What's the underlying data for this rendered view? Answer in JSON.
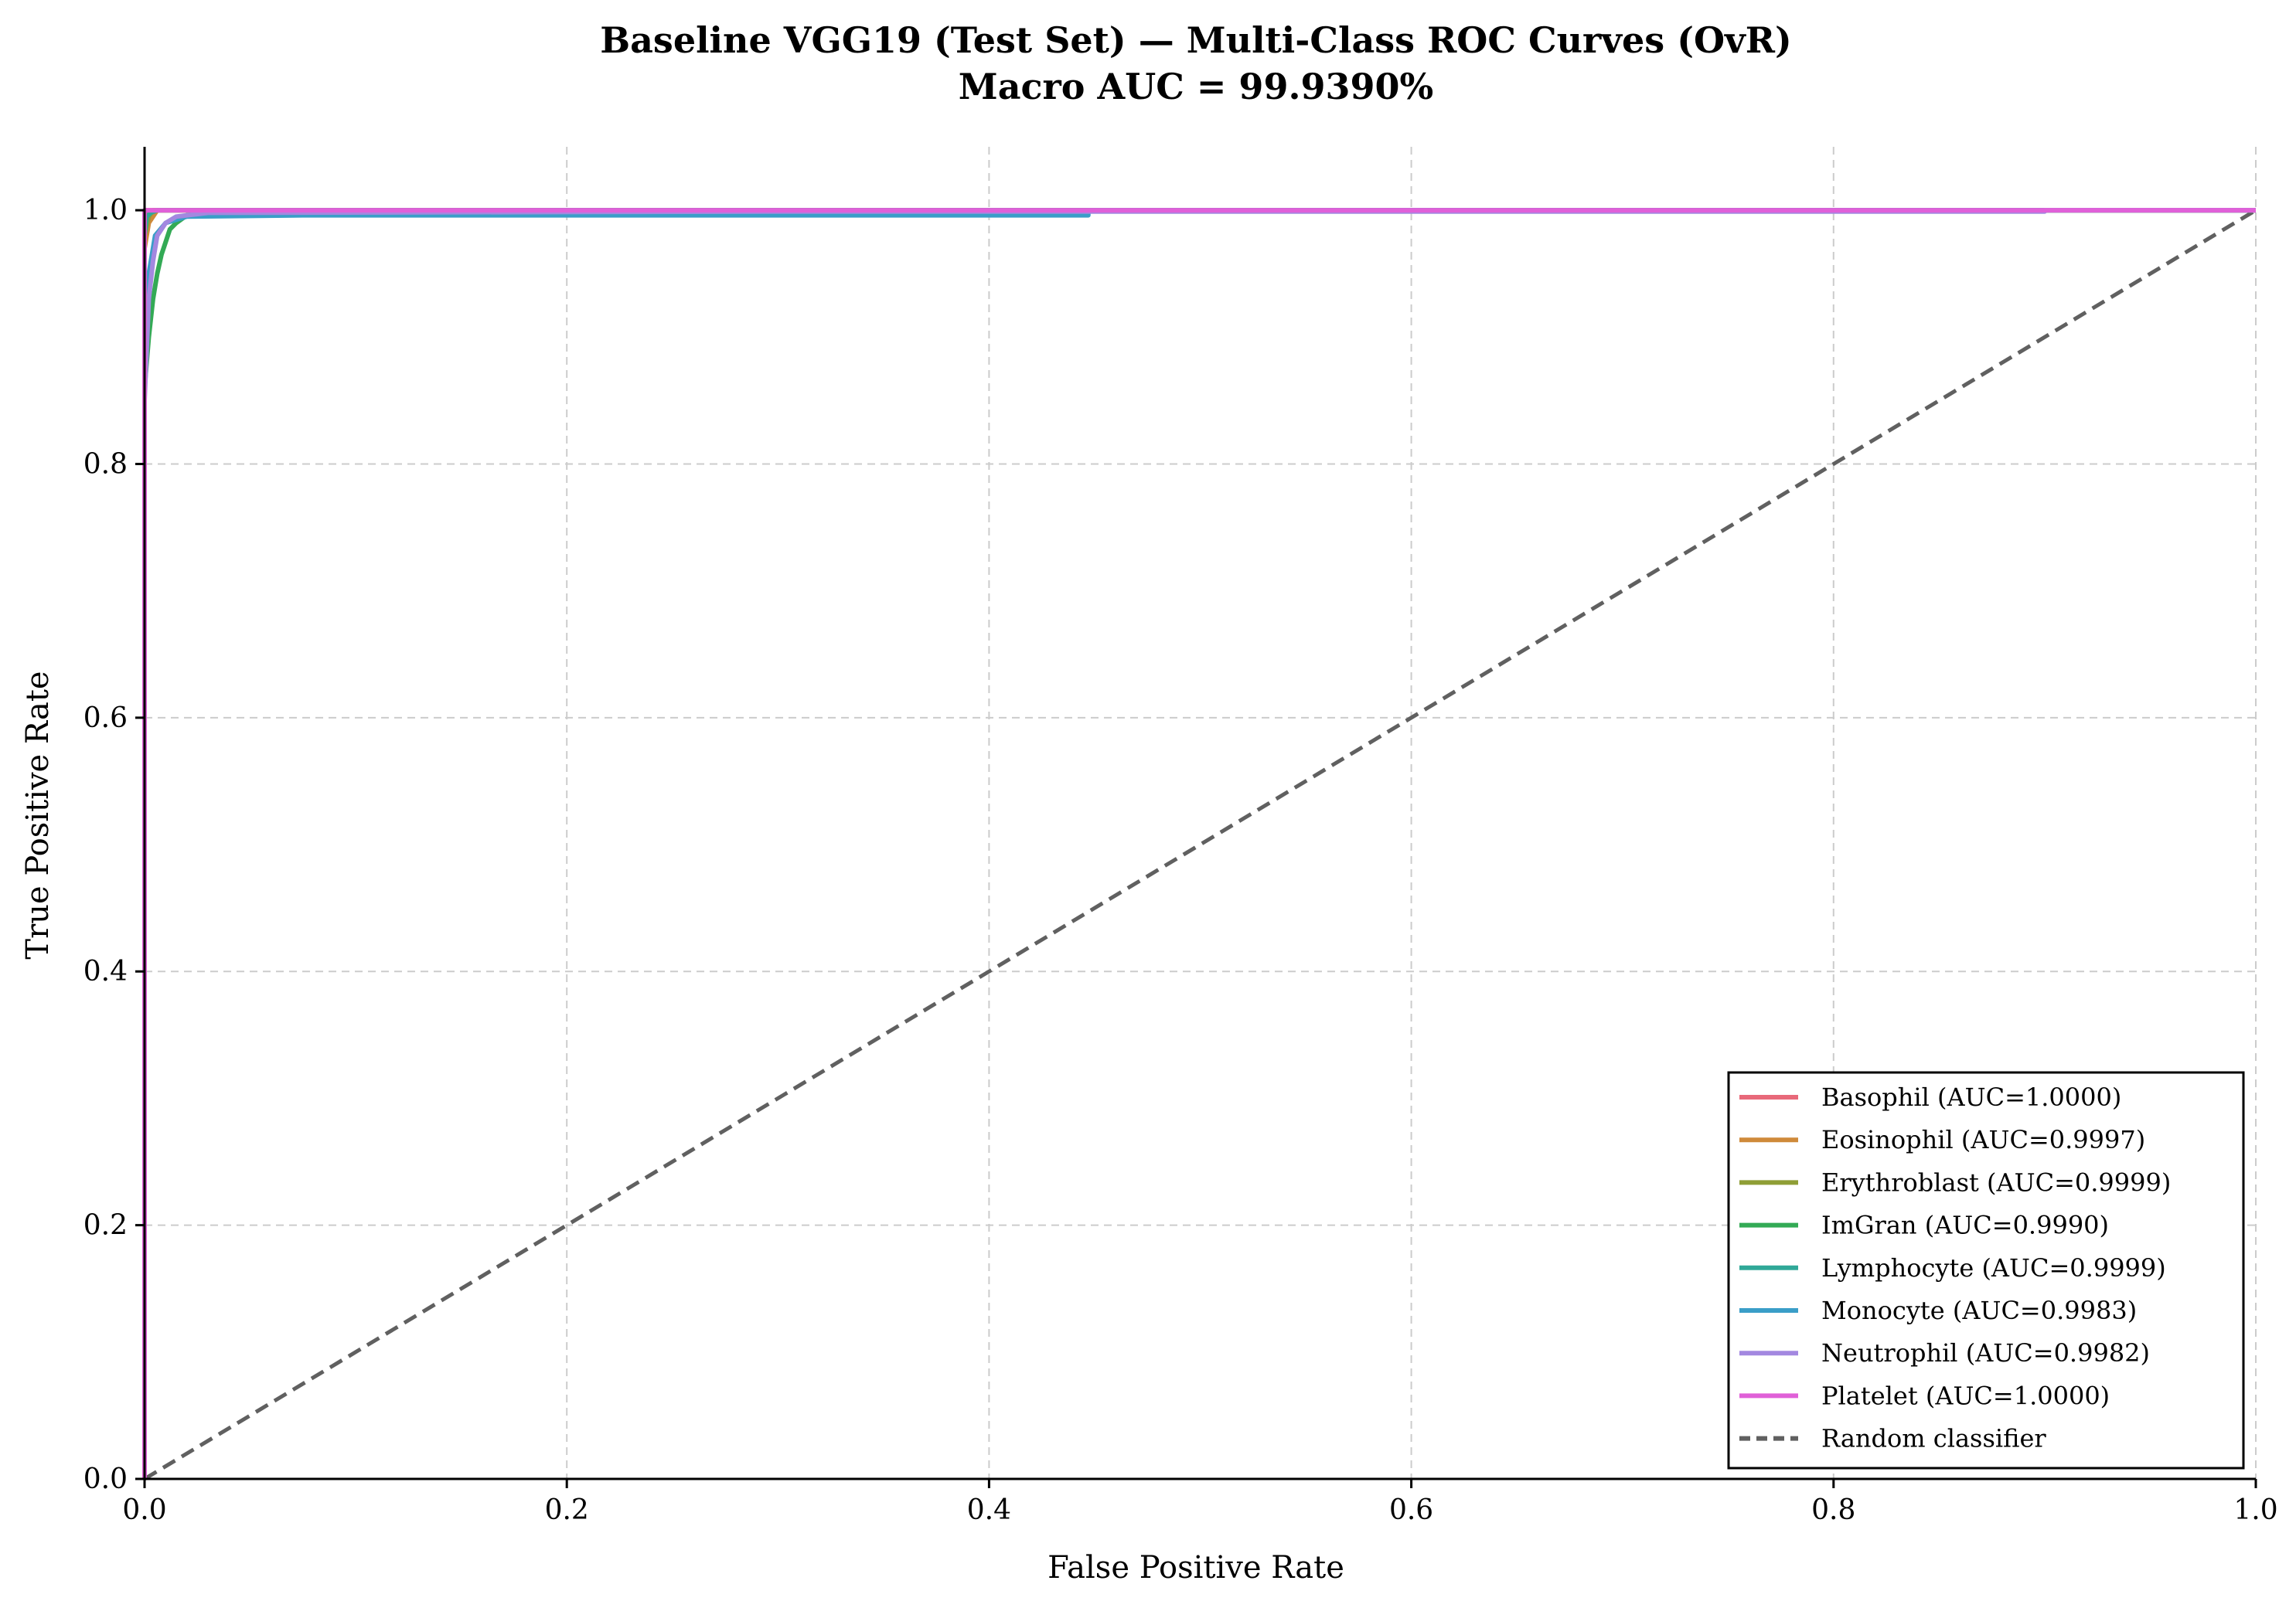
{
  "chart_data": {
    "type": "line",
    "title": "Baseline VGG19 (Test Set) — Multi-Class ROC Curves (OvR)",
    "subtitle": "Macro AUC = 99.9390%",
    "xlabel": "False Positive Rate",
    "ylabel": "True Positive Rate",
    "xlim": [
      0,
      1
    ],
    "ylim": [
      0,
      1.05
    ],
    "xticks": [
      0.0,
      0.2,
      0.4,
      0.6,
      0.8,
      1.0
    ],
    "yticks": [
      0.0,
      0.2,
      0.4,
      0.6,
      0.8,
      1.0
    ],
    "xtick_labels": [
      "0.0",
      "0.2",
      "0.4",
      "0.6",
      "0.8",
      "1.0"
    ],
    "ytick_labels": [
      "0.0",
      "0.2",
      "0.4",
      "0.6",
      "0.8",
      "1.0"
    ],
    "grid": true,
    "legend_position": "bottom-right",
    "series": [
      {
        "name": "Basophil (AUC=1.0000)",
        "color": "#e8697a",
        "points": [
          [
            0,
            0
          ],
          [
            0,
            0.99
          ],
          [
            0.001,
            1.0
          ],
          [
            1,
            1
          ]
        ]
      },
      {
        "name": "Eosinophil (AUC=0.9997)",
        "color": "#cf8a3a",
        "points": [
          [
            0,
            0
          ],
          [
            0,
            0.97
          ],
          [
            0.002,
            0.99
          ],
          [
            0.006,
            1.0
          ],
          [
            1,
            1
          ]
        ]
      },
      {
        "name": "Erythroblast (AUC=0.9999)",
        "color": "#8f9e36",
        "points": [
          [
            0,
            0
          ],
          [
            0,
            0.98
          ],
          [
            0.002,
            0.995
          ],
          [
            0.004,
            1.0
          ],
          [
            1,
            1
          ]
        ]
      },
      {
        "name": "ImGran (AUC=0.9990)",
        "color": "#33aa55",
        "points": [
          [
            0,
            0
          ],
          [
            0,
            0.86
          ],
          [
            0.002,
            0.9
          ],
          [
            0.004,
            0.93
          ],
          [
            0.006,
            0.95
          ],
          [
            0.008,
            0.965
          ],
          [
            0.01,
            0.975
          ],
          [
            0.012,
            0.985
          ],
          [
            0.015,
            0.99
          ],
          [
            0.02,
            0.996
          ],
          [
            0.03,
            0.998
          ],
          [
            0.08,
            0.999
          ],
          [
            0.2,
            1.0
          ],
          [
            1,
            1
          ]
        ]
      },
      {
        "name": "Lymphocyte (AUC=0.9999)",
        "color": "#30a898",
        "points": [
          [
            0,
            0
          ],
          [
            0,
            0.98
          ],
          [
            0.001,
            0.995
          ],
          [
            0.003,
            0.998
          ],
          [
            0.006,
            1.0
          ],
          [
            1,
            1
          ]
        ]
      },
      {
        "name": "Monocyte (AUC=0.9983)",
        "color": "#3a9ec8",
        "points": [
          [
            0,
            0
          ],
          [
            0,
            0.9
          ],
          [
            0.002,
            0.95
          ],
          [
            0.005,
            0.98
          ],
          [
            0.01,
            0.99
          ],
          [
            0.02,
            0.995
          ],
          [
            0.075,
            0.996
          ],
          [
            0.447,
            0.996
          ],
          [
            0.447,
            1.0
          ],
          [
            1,
            1
          ]
        ]
      },
      {
        "name": "Neutrophil (AUC=0.9982)",
        "color": "#a388e0",
        "points": [
          [
            0,
            0
          ],
          [
            0,
            0.85
          ],
          [
            0.002,
            0.93
          ],
          [
            0.004,
            0.96
          ],
          [
            0.006,
            0.98
          ],
          [
            0.01,
            0.99
          ],
          [
            0.015,
            0.995
          ],
          [
            0.03,
            0.998
          ],
          [
            0.3,
            0.999
          ],
          [
            0.9,
            0.999
          ],
          [
            0.9,
            1.0
          ],
          [
            1,
            1
          ]
        ]
      },
      {
        "name": "Platelet (AUC=1.0000)",
        "color": "#e060d8",
        "points": [
          [
            0,
            0
          ],
          [
            0,
            1.0
          ],
          [
            1,
            1
          ]
        ]
      }
    ],
    "reference_line": {
      "name": "Random classifier",
      "color": "#606060",
      "points": [
        [
          0,
          0
        ],
        [
          1,
          1
        ]
      ]
    }
  }
}
